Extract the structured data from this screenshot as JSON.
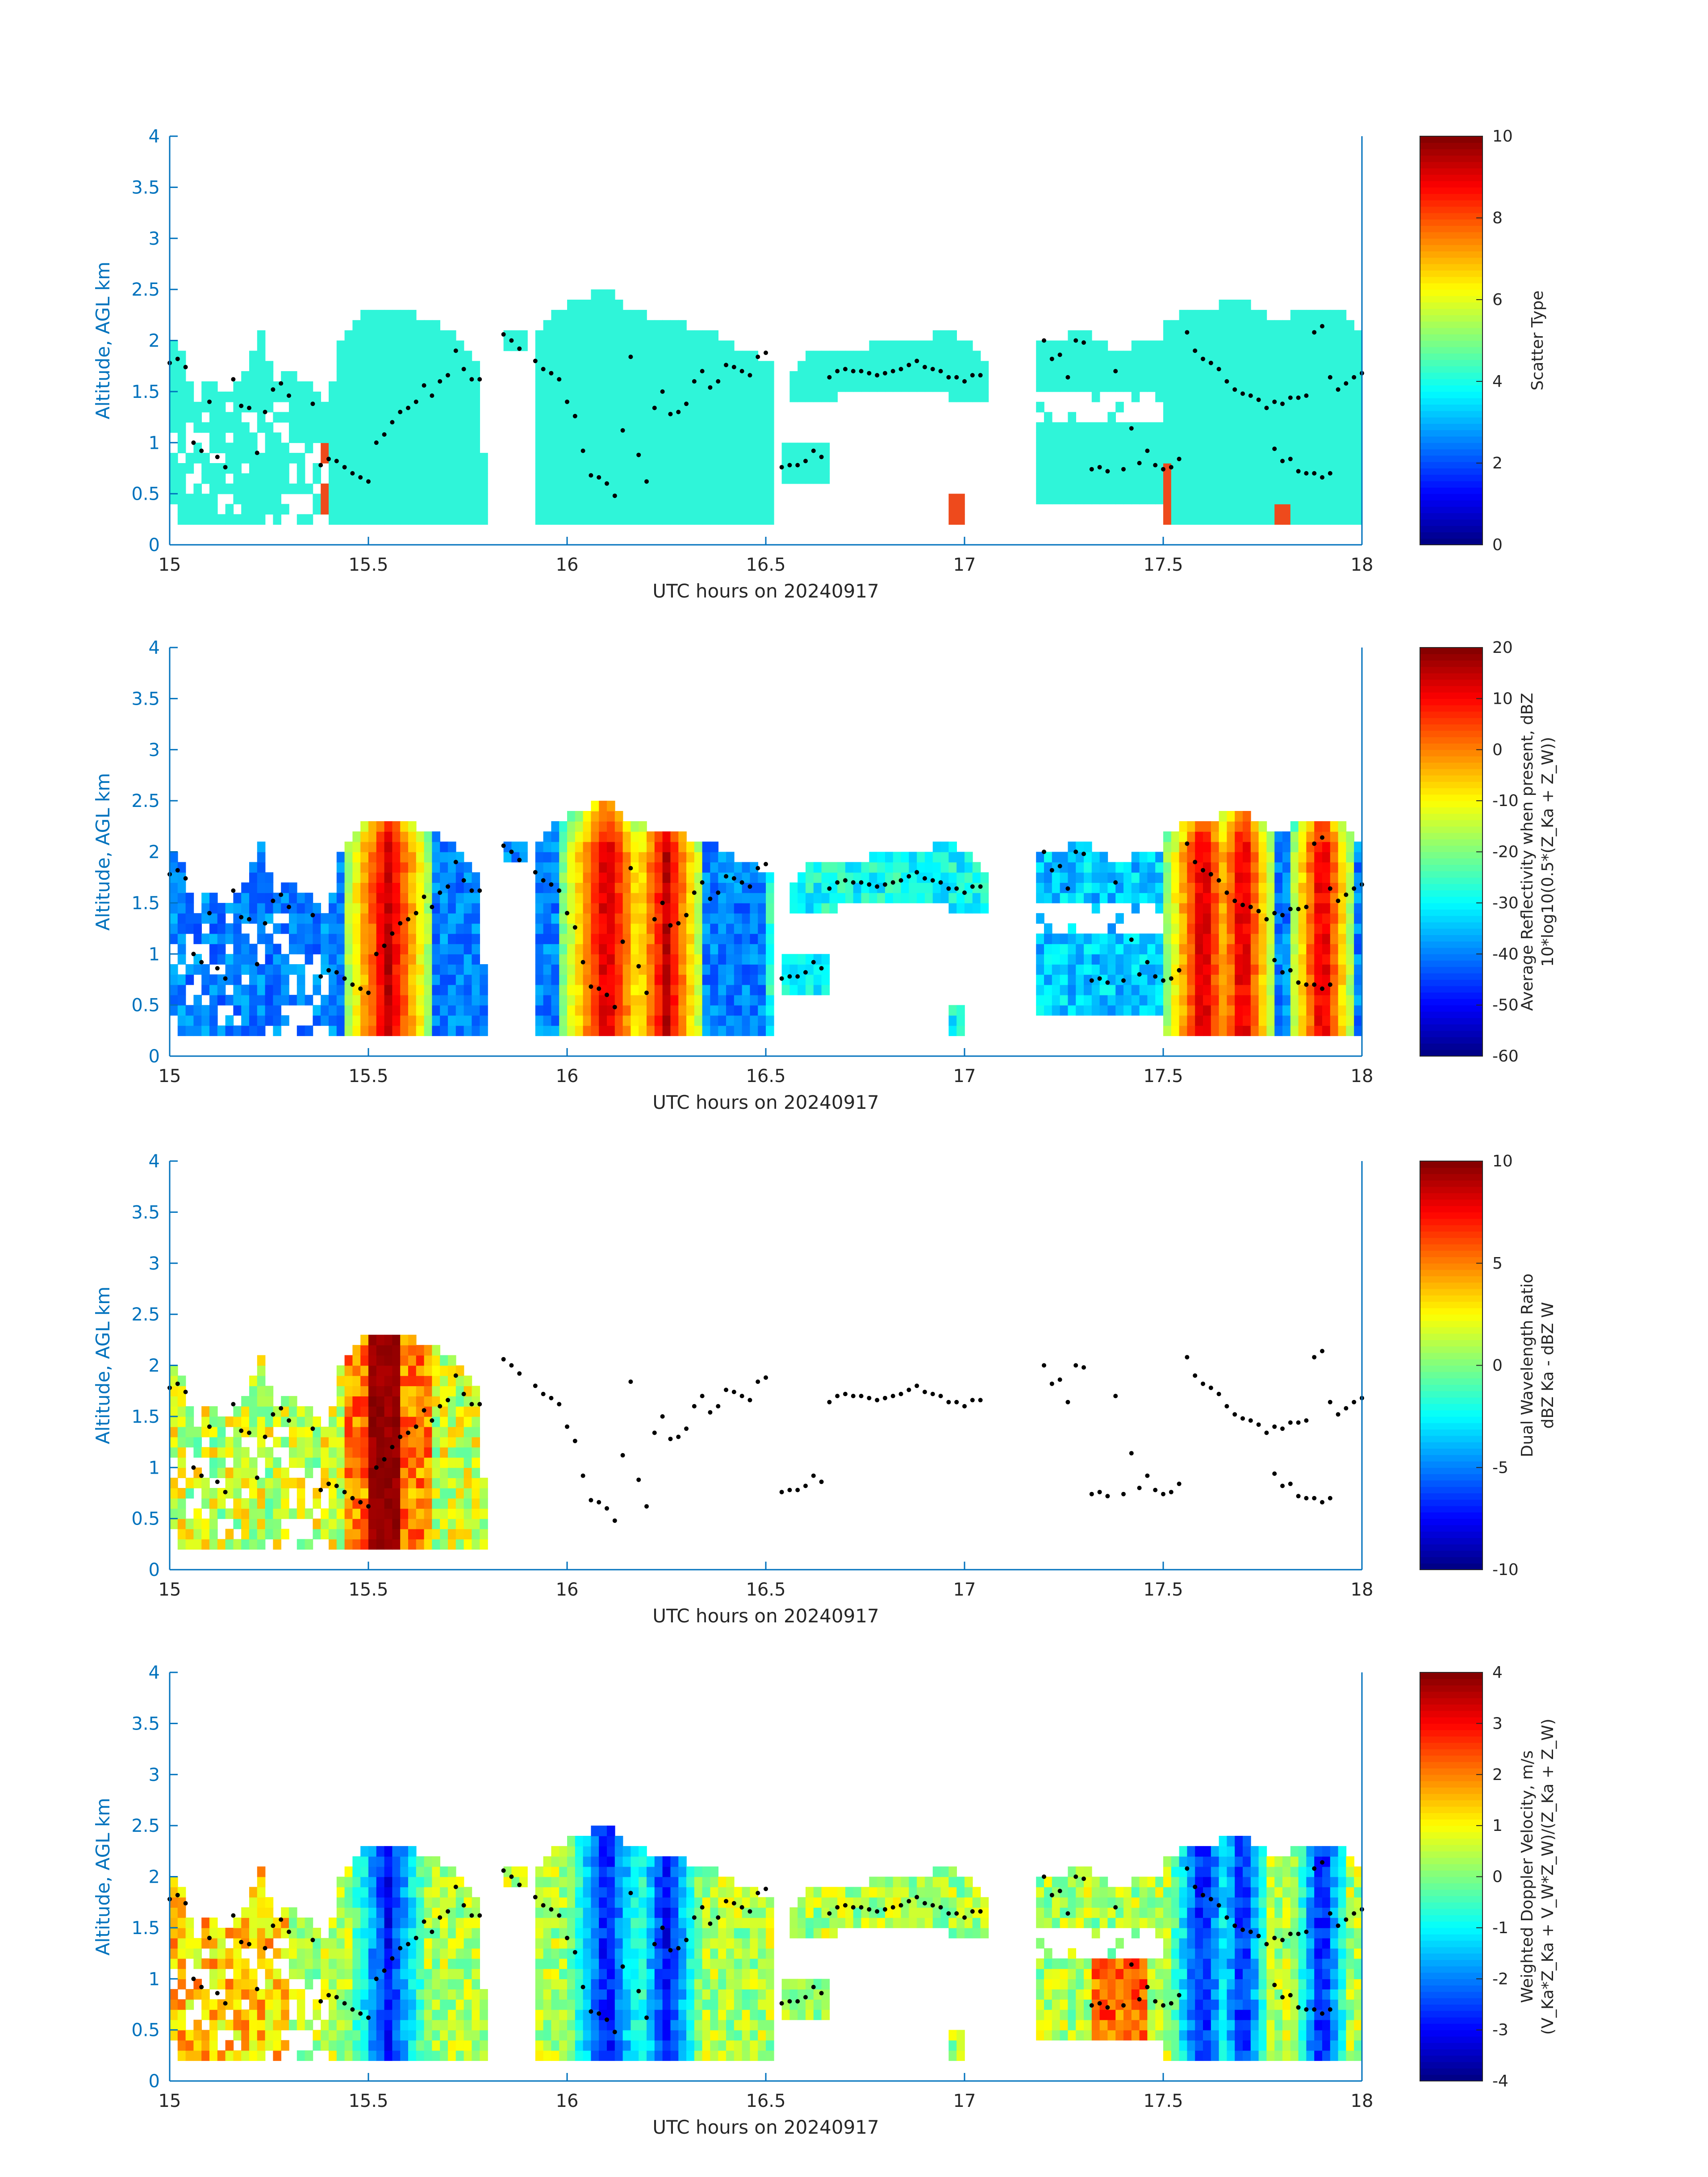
{
  "chart_data": [
    {
      "type": "heatmap",
      "xlabel": "UTC hours on 20240917",
      "ylabel": "Altitude, AGL km",
      "xlim": [
        15,
        18
      ],
      "ylim": [
        0,
        4
      ],
      "x_ticks": [
        "15",
        "15.5",
        "16",
        "16.5",
        "17",
        "17.5",
        "18"
      ],
      "y_ticks": [
        "0",
        "0.5",
        "1",
        "1.5",
        "2",
        "2.5",
        "3",
        "3.5",
        "4"
      ],
      "colorbar": {
        "label_lines": [
          "Scatter Type"
        ],
        "range": [
          0,
          10
        ],
        "ticks": [
          "0",
          "2",
          "4",
          "6",
          "8",
          "10"
        ]
      },
      "field": "scatter",
      "colors": {
        "dominant": "#2ff5d9",
        "secondary": "#ee4a1c"
      }
    },
    {
      "type": "heatmap",
      "xlabel": "UTC hours on 20240917",
      "ylabel": "Altitude, AGL km",
      "xlim": [
        15,
        18
      ],
      "ylim": [
        0,
        4
      ],
      "x_ticks": [
        "15",
        "15.5",
        "16",
        "16.5",
        "17",
        "17.5",
        "18"
      ],
      "y_ticks": [
        "0",
        "0.5",
        "1",
        "1.5",
        "2",
        "2.5",
        "3",
        "3.5",
        "4"
      ],
      "colorbar": {
        "label_lines": [
          "Average Reflectivity when present, dBZ",
          "10*log10(0.5*(Z_Ka + Z_W))"
        ],
        "range": [
          -60,
          20
        ],
        "ticks": [
          "-60",
          "-50",
          "-40",
          "-30",
          "-20",
          "-10",
          "0",
          "10",
          "20"
        ]
      },
      "field": "reflectivity"
    },
    {
      "type": "heatmap",
      "xlabel": "UTC hours on 20240917",
      "ylabel": "Altitude, AGL km",
      "xlim": [
        15,
        18
      ],
      "ylim": [
        0,
        4
      ],
      "x_ticks": [
        "15",
        "15.5",
        "16",
        "16.5",
        "17",
        "17.5",
        "18"
      ],
      "y_ticks": [
        "0",
        "0.5",
        "1",
        "1.5",
        "2",
        "2.5",
        "3",
        "3.5",
        "4"
      ],
      "colorbar": {
        "label_lines": [
          "Dual Wavelength Ratio",
          "dBZ Ka - dBZ W"
        ],
        "range": [
          -10,
          10
        ],
        "ticks": [
          "-10",
          "-5",
          "0",
          "5",
          "10"
        ]
      },
      "field": "dwr"
    },
    {
      "type": "heatmap",
      "xlabel": "UTC hours on 20240917",
      "ylabel": "Altitude, AGL km",
      "xlim": [
        15,
        18
      ],
      "ylim": [
        0,
        4
      ],
      "x_ticks": [
        "15",
        "15.5",
        "16",
        "16.5",
        "17",
        "17.5",
        "18"
      ],
      "y_ticks": [
        "0",
        "0.5",
        "1",
        "1.5",
        "2",
        "2.5",
        "3",
        "3.5",
        "4"
      ],
      "colorbar": {
        "label_lines": [
          "Weighted Doppler Velocity, m/s",
          "(V_Ka*Z_Ka + V_W*Z_W)/(Z_Ka + Z_W)"
        ],
        "range": [
          -4,
          4
        ],
        "ticks": [
          "-4",
          "-3",
          "-2",
          "-1",
          "0",
          "1",
          "2",
          "3",
          "4"
        ]
      },
      "field": "velocity"
    }
  ],
  "cloud_base_points": [
    [
      15.0,
      1.78
    ],
    [
      15.02,
      1.82
    ],
    [
      15.04,
      1.74
    ],
    [
      15.06,
      1.0
    ],
    [
      15.08,
      0.92
    ],
    [
      15.1,
      1.4
    ],
    [
      15.12,
      0.86
    ],
    [
      15.14,
      0.76
    ],
    [
      15.16,
      1.62
    ],
    [
      15.18,
      1.36
    ],
    [
      15.2,
      1.34
    ],
    [
      15.22,
      0.9
    ],
    [
      15.24,
      1.3
    ],
    [
      15.26,
      1.52
    ],
    [
      15.28,
      1.58
    ],
    [
      15.3,
      1.46
    ],
    [
      15.36,
      1.38
    ],
    [
      15.38,
      0.78
    ],
    [
      15.4,
      0.84
    ],
    [
      15.42,
      0.82
    ],
    [
      15.44,
      0.76
    ],
    [
      15.46,
      0.7
    ],
    [
      15.48,
      0.66
    ],
    [
      15.5,
      0.62
    ],
    [
      15.52,
      1.0
    ],
    [
      15.54,
      1.08
    ],
    [
      15.56,
      1.2
    ],
    [
      15.58,
      1.3
    ],
    [
      15.6,
      1.34
    ],
    [
      15.62,
      1.4
    ],
    [
      15.64,
      1.56
    ],
    [
      15.66,
      1.46
    ],
    [
      15.68,
      1.6
    ],
    [
      15.7,
      1.66
    ],
    [
      15.72,
      1.9
    ],
    [
      15.74,
      1.72
    ],
    [
      15.76,
      1.62
    ],
    [
      15.78,
      1.62
    ],
    [
      15.84,
      2.06
    ],
    [
      15.86,
      2.0
    ],
    [
      15.88,
      1.92
    ],
    [
      15.92,
      1.8
    ],
    [
      15.94,
      1.72
    ],
    [
      15.96,
      1.68
    ],
    [
      15.98,
      1.62
    ],
    [
      16.0,
      1.4
    ],
    [
      16.02,
      1.26
    ],
    [
      16.04,
      0.92
    ],
    [
      16.06,
      0.68
    ],
    [
      16.08,
      0.66
    ],
    [
      16.1,
      0.6
    ],
    [
      16.12,
      0.48
    ],
    [
      16.14,
      1.12
    ],
    [
      16.16,
      1.84
    ],
    [
      16.18,
      0.88
    ],
    [
      16.2,
      0.62
    ],
    [
      16.22,
      1.34
    ],
    [
      16.24,
      1.5
    ],
    [
      16.26,
      1.28
    ],
    [
      16.28,
      1.3
    ],
    [
      16.3,
      1.38
    ],
    [
      16.32,
      1.6
    ],
    [
      16.34,
      1.7
    ],
    [
      16.36,
      1.54
    ],
    [
      16.38,
      1.6
    ],
    [
      16.4,
      1.76
    ],
    [
      16.42,
      1.74
    ],
    [
      16.44,
      1.7
    ],
    [
      16.46,
      1.66
    ],
    [
      16.48,
      1.84
    ],
    [
      16.5,
      1.88
    ],
    [
      16.54,
      0.76
    ],
    [
      16.56,
      0.78
    ],
    [
      16.58,
      0.78
    ],
    [
      16.6,
      0.82
    ],
    [
      16.62,
      0.92
    ],
    [
      16.64,
      0.86
    ],
    [
      16.66,
      1.64
    ],
    [
      16.68,
      1.7
    ],
    [
      16.7,
      1.72
    ],
    [
      16.72,
      1.7
    ],
    [
      16.74,
      1.7
    ],
    [
      16.76,
      1.68
    ],
    [
      16.78,
      1.66
    ],
    [
      16.8,
      1.68
    ],
    [
      16.82,
      1.7
    ],
    [
      16.84,
      1.72
    ],
    [
      16.86,
      1.76
    ],
    [
      16.88,
      1.8
    ],
    [
      16.9,
      1.74
    ],
    [
      16.92,
      1.72
    ],
    [
      16.94,
      1.7
    ],
    [
      16.96,
      1.64
    ],
    [
      16.98,
      1.64
    ],
    [
      17.0,
      1.6
    ],
    [
      17.02,
      1.66
    ],
    [
      17.04,
      1.66
    ],
    [
      17.2,
      2.0
    ],
    [
      17.22,
      1.82
    ],
    [
      17.24,
      1.86
    ],
    [
      17.26,
      1.64
    ],
    [
      17.28,
      2.0
    ],
    [
      17.3,
      1.98
    ],
    [
      17.32,
      0.74
    ],
    [
      17.34,
      0.76
    ],
    [
      17.36,
      0.72
    ],
    [
      17.38,
      1.7
    ],
    [
      17.4,
      0.74
    ],
    [
      17.42,
      1.14
    ],
    [
      17.44,
      0.8
    ],
    [
      17.46,
      0.92
    ],
    [
      17.48,
      0.78
    ],
    [
      17.5,
      0.74
    ],
    [
      17.52,
      0.76
    ],
    [
      17.54,
      0.84
    ],
    [
      17.56,
      2.08
    ],
    [
      17.58,
      1.9
    ],
    [
      17.6,
      1.82
    ],
    [
      17.62,
      1.78
    ],
    [
      17.64,
      1.72
    ],
    [
      17.66,
      1.6
    ],
    [
      17.68,
      1.52
    ],
    [
      17.7,
      1.48
    ],
    [
      17.72,
      1.46
    ],
    [
      17.74,
      1.42
    ],
    [
      17.76,
      1.34
    ],
    [
      17.78,
      0.94
    ],
    [
      17.8,
      0.82
    ],
    [
      17.82,
      0.84
    ],
    [
      17.84,
      0.72
    ],
    [
      17.86,
      0.7
    ],
    [
      17.88,
      0.7
    ],
    [
      17.9,
      0.66
    ],
    [
      17.92,
      0.7
    ],
    [
      17.78,
      1.4
    ],
    [
      17.8,
      1.38
    ],
    [
      17.82,
      1.44
    ],
    [
      17.84,
      1.44
    ],
    [
      17.86,
      1.46
    ],
    [
      17.88,
      2.08
    ],
    [
      17.9,
      2.14
    ],
    [
      17.92,
      1.64
    ],
    [
      17.94,
      1.52
    ],
    [
      17.96,
      1.58
    ],
    [
      17.98,
      1.64
    ],
    [
      18.0,
      1.68
    ]
  ]
}
